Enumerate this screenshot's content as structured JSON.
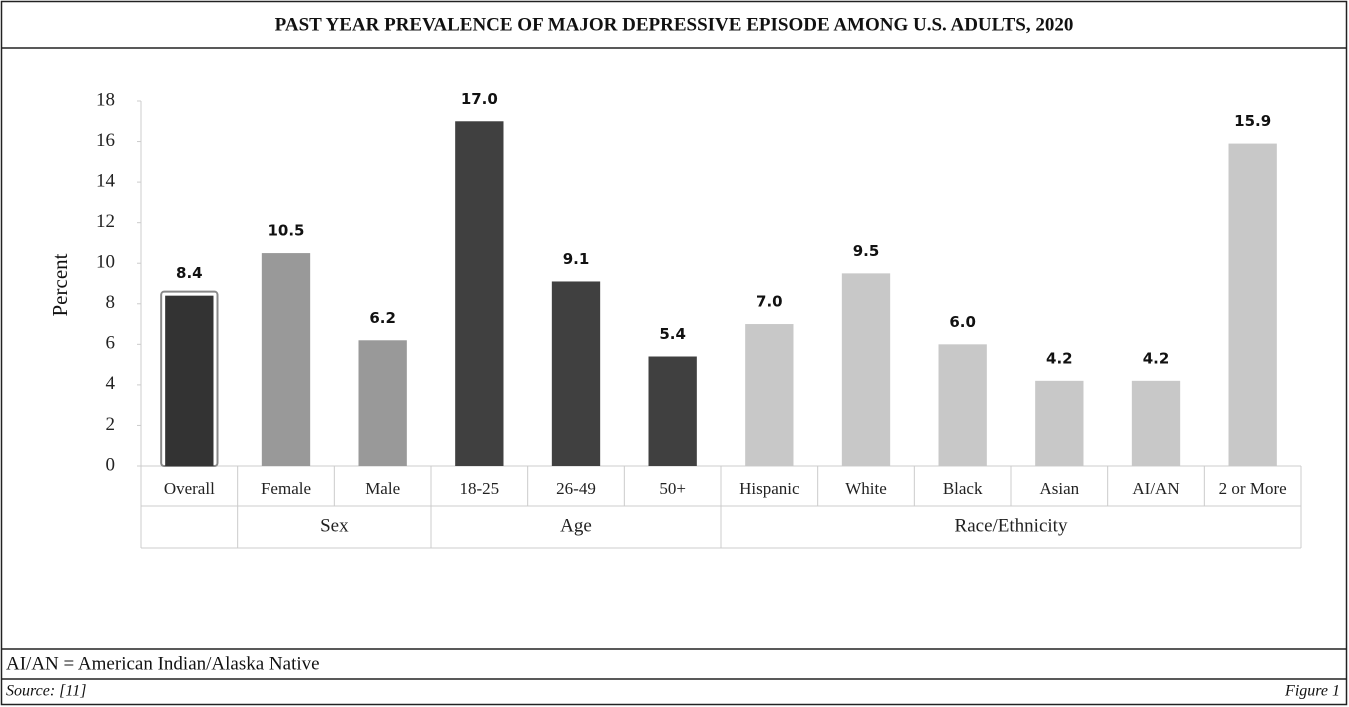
{
  "chart_data": {
    "type": "bar",
    "title": "PAST YEAR PREVALENCE OF MAJOR DEPRESSIVE EPISODE AMONG U.S. ADULTS, 2020",
    "ylabel": "Percent",
    "categories": [
      "Overall",
      "Female",
      "Male",
      "18-25",
      "26-49",
      "50+",
      "Hispanic",
      "White",
      "Black",
      "Asian",
      "AI/AN",
      "2 or More"
    ],
    "group_labels": [
      null,
      "Sex",
      "Sex",
      "Age",
      "Age",
      "Age",
      "Race/Ethnicity",
      "Race/Ethnicity",
      "Race/Ethnicity",
      "Race/Ethnicity",
      "Race/Ethnicity",
      "Race/Ethnicity"
    ],
    "values": [
      8.4,
      10.5,
      6.2,
      17.0,
      9.1,
      5.4,
      7.0,
      9.5,
      6.0,
      4.2,
      4.2,
      15.9
    ],
    "value_labels": [
      "8.4",
      "10.5",
      "6.2",
      "17.0",
      "9.1",
      "5.4",
      "7.0",
      "9.5",
      "6.0",
      "4.2",
      "4.2",
      "15.9"
    ],
    "colors": [
      "#333333",
      "#999999",
      "#999999",
      "#404040",
      "#404040",
      "#404040",
      "#c8c8c8",
      "#c8c8c8",
      "#c8c8c8",
      "#c8c8c8",
      "#c8c8c8",
      "#c8c8c8"
    ],
    "ylim": [
      0,
      18
    ],
    "yticks": [
      0,
      2,
      4,
      6,
      8,
      10,
      12,
      14,
      16,
      18
    ],
    "grid": false
  },
  "footer": {
    "note": "AI/AN = American Indian/Alaska Native",
    "source": "Source: [11]",
    "figure_label": "Figure 1"
  }
}
